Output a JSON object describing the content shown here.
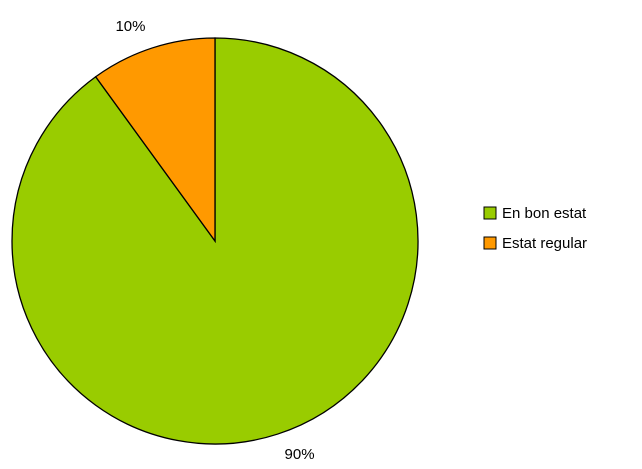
{
  "chart_data": {
    "type": "pie",
    "categories": [
      "En bon estat",
      "Estat regular"
    ],
    "values": [
      90,
      10
    ],
    "value_labels": [
      "90%",
      "10%"
    ],
    "colors": [
      "#99cc00",
      "#ff9900"
    ],
    "legend": "right"
  }
}
